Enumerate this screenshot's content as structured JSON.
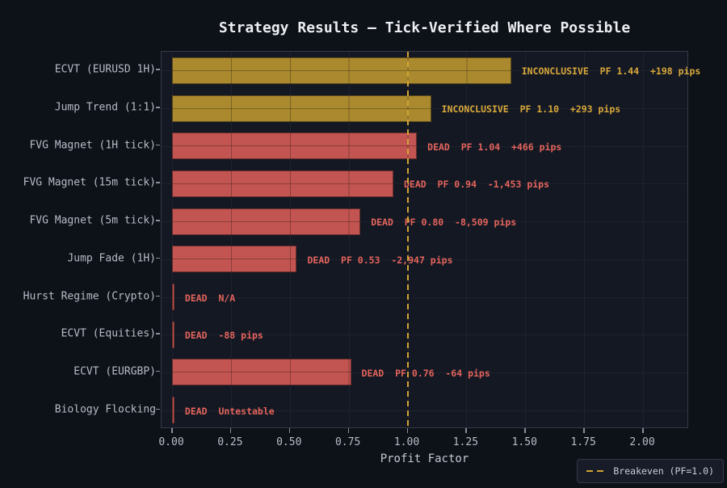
{
  "title": "Strategy Results — Tick-Verified Where Possible",
  "legend": {
    "label": "Breakeven (PF=1.0)"
  },
  "colors": {
    "background": "#0d1118",
    "plot_background": "#141823",
    "inconclusive_bar": "#aa892f",
    "inconclusive_text": "#d9a83a",
    "dead_bar": "#c25551",
    "dead_text": "#e4645c",
    "breakeven_line": "#d2a433",
    "axis_text": "#b6bdc8",
    "title_text": "#eceef2"
  },
  "chart_data": {
    "type": "bar",
    "orientation": "horizontal",
    "title": "Strategy Results — Tick-Verified Where Possible",
    "xlabel": "Profit Factor",
    "ylabel": "",
    "xlim": [
      -0.045,
      2.195
    ],
    "grid": true,
    "legend_position": "lower right",
    "x_ticks": [
      {
        "value": 0.0,
        "label": "0.00"
      },
      {
        "value": 0.25,
        "label": "0.25"
      },
      {
        "value": 0.5,
        "label": "0.50"
      },
      {
        "value": 0.75,
        "label": "0.75"
      },
      {
        "value": 1.0,
        "label": "1.00"
      },
      {
        "value": 1.25,
        "label": "1.25"
      },
      {
        "value": 1.5,
        "label": "1.50"
      },
      {
        "value": 1.75,
        "label": "1.75"
      },
      {
        "value": 2.0,
        "label": "2.00"
      }
    ],
    "breakeven_line": {
      "x": 1.0,
      "style": "dashed",
      "label": "Breakeven (PF=1.0)"
    },
    "rows": [
      {
        "category": "ECVT (EURUSD 1H)",
        "bar_pf": 1.44,
        "status": "INCONCLUSIVE",
        "annotation": "INCONCLUSIVE  PF 1.44  +198 pips",
        "pips": "+198"
      },
      {
        "category": "Jump Trend (1:1)",
        "bar_pf": 1.1,
        "status": "INCONCLUSIVE",
        "annotation": "INCONCLUSIVE  PF 1.10  +293 pips",
        "pips": "+293"
      },
      {
        "category": "FVG Magnet (1H tick)",
        "bar_pf": 1.04,
        "status": "DEAD",
        "annotation": "DEAD  PF 1.04  +466 pips",
        "pips": "+466"
      },
      {
        "category": "FVG Magnet (15m tick)",
        "bar_pf": 0.94,
        "status": "DEAD",
        "annotation": "DEAD  PF 0.94  -1,453 pips",
        "pips": "-1,453"
      },
      {
        "category": "FVG Magnet (5m tick)",
        "bar_pf": 0.8,
        "status": "DEAD",
        "annotation": "DEAD  PF 0.80  -8,509 pips",
        "pips": "-8,509"
      },
      {
        "category": "Jump Fade (1H)",
        "bar_pf": 0.53,
        "status": "DEAD",
        "annotation": "DEAD  PF 0.53  -2,947 pips",
        "pips": "-2,947"
      },
      {
        "category": "Hurst Regime (Crypto)",
        "bar_pf": 0.01,
        "status": "DEAD",
        "annotation": "DEAD  N/A",
        "pips": "N/A"
      },
      {
        "category": "ECVT (Equities)",
        "bar_pf": 0.01,
        "status": "DEAD",
        "annotation": "DEAD  -88 pips",
        "pips": "-88"
      },
      {
        "category": "ECVT (EURGBP)",
        "bar_pf": 0.76,
        "status": "DEAD",
        "annotation": "DEAD  PF 0.76  -64 pips",
        "pips": "-64"
      },
      {
        "category": "Biology Flocking",
        "bar_pf": 0.01,
        "status": "DEAD",
        "annotation": "DEAD  Untestable",
        "pips": "Untestable"
      }
    ]
  }
}
